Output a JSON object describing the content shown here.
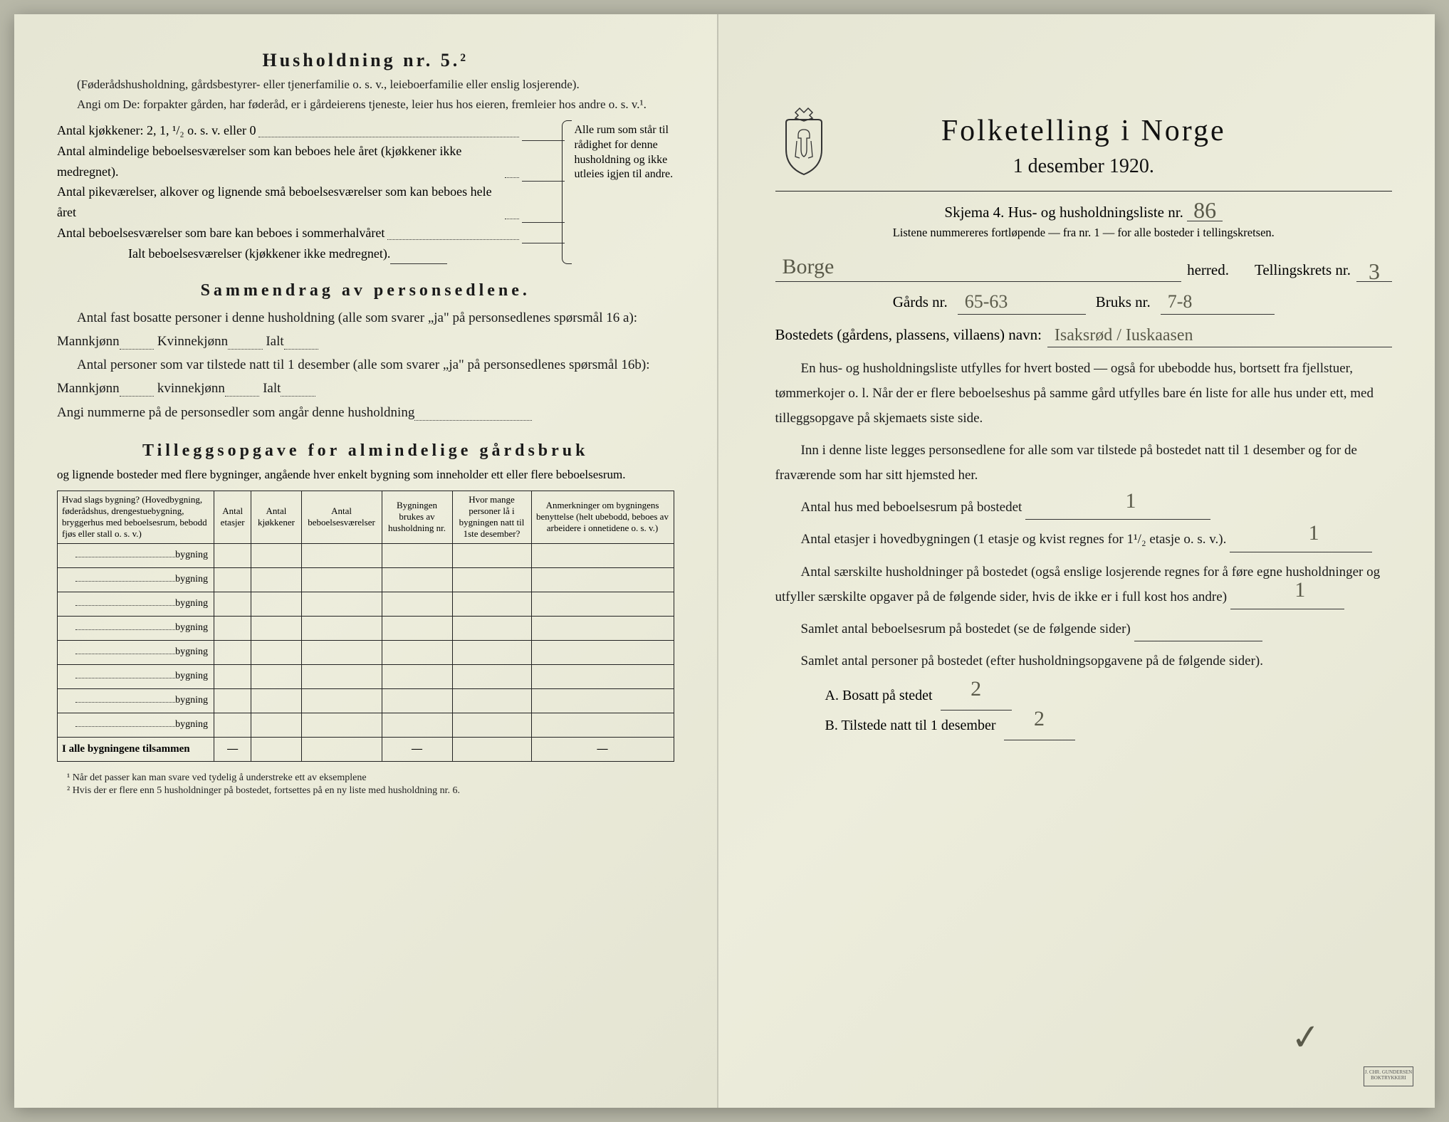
{
  "colors": {
    "paper": "#e8e8d8",
    "ink": "#1a1a1a",
    "handwriting": "#5a5a4a",
    "background": "#b8b8a8",
    "rule": "#222222"
  },
  "left": {
    "title": "Husholdning nr. 5.²",
    "intro1": "(Føderådshusholdning, gårdsbestyrer- eller tjenerfamilie o. s. v., leieboerfamilie eller enslig losjerende).",
    "intro2": "Angi om De: forpakter gården, har føderåd, er i gårdeierens tjeneste, leier hus hos eieren, fremleier hos andre o. s. v.¹.",
    "kitchens": "Antal kjøkkener: 2, 1, ¹/₂ o. s. v. eller 0",
    "rooms": [
      "Antal almindelige beboelsesværelser som kan beboes hele året (kjøkkener ikke medregnet).",
      "Antal pikeværelser, alkover og lignende små beboelsesværelser som kan beboes hele året",
      "Antal beboelsesværelser som bare kan beboes i sommerhalvåret"
    ],
    "rooms_total": "Ialt beboelsesværelser (kjøkkener ikke medregnet).",
    "margin_note": "Alle rum som står til rådighet for denne husholdning og ikke utleies igjen til andre.",
    "section2_title": "Sammendrag av personsedlene.",
    "s2_line1": "Antal fast bosatte personer i denne husholdning (alle som svarer „ja\" på personsedlenes spørsmål 16 a): Mannkjønn",
    "s2_kvinne": "Kvinnekjønn",
    "s2_ialt": "Ialt",
    "s2_line2": "Antal personer som var tilstede natt til 1 desember (alle som svarer „ja\" på personsedlenes spørsmål 16b): Mannkjønn",
    "s2_kvinne2": "kvinnekjønn",
    "s2_angi": "Angi nummerne på de personsedler som angår denne husholdning",
    "section3_title": "Tilleggsopgave for almindelige gårdsbruk",
    "s3_sub": "og lignende bosteder med flere bygninger, angående hver enkelt bygning som inneholder ett eller flere beboelsesrum.",
    "table": {
      "headers": [
        "Hvad slags bygning?\n(Hovedbygning, føderådshus, drengestuebygning, bryggerhus med beboelsesrum, bebodd fjøs eller stall o. s. v.)",
        "Antal etasjer",
        "Antal kjøkkener",
        "Antal beboelsesværelser",
        "Bygningen brukes av husholdning nr.",
        "Hvor mange personer lå i bygningen natt til 1ste desember?",
        "Anmerkninger om bygningens benyttelse (helt ubebodd, beboes av arbeidere i onnetidene o. s. v.)"
      ],
      "row_suffix": "bygning",
      "row_count": 8,
      "sum_label": "I alle bygningene tilsammen"
    },
    "footnotes": [
      "¹  Når det passer kan man svare ved tydelig å understreke ett av eksemplene",
      "²  Hvis der er flere enn 5 husholdninger på bostedet, fortsettes på en ny liste med husholdning nr. 6."
    ]
  },
  "right": {
    "title": "Folketelling i Norge",
    "date": "1 desember 1920.",
    "rule_above": true,
    "skjema": "Skjema 4.  Hus- og husholdningsliste nr.",
    "skjema_nr": "86",
    "listene": "Listene nummereres fortløpende — fra nr. 1 — for alle bosteder i tellingskretsen.",
    "herred_value": "Borge",
    "herred_label": "herred.",
    "tellingskrets_label": "Tellingskrets nr.",
    "tellingskrets_nr": "3",
    "gards_label": "Gårds nr.",
    "gards_nr": "65-63",
    "bruks_label": "Bruks nr.",
    "bruks_nr": "7-8",
    "bosted_label": "Bostedets (gårdens, plassens, villaens) navn:",
    "bosted_value": "Isaksrød / Iuskaasen",
    "para1": "En hus- og husholdningsliste utfylles for hvert bosted — også for ubebodde hus, bortsett fra fjellstuer, tømmerkojer o. l. Når der er flere beboelseshus på samme gård utfylles bare én liste for alle hus under ett, med tilleggsopgave på skjemaets siste side.",
    "para2": "Inn i denne liste legges personsedlene for alle som var tilstede på bostedet natt til 1 desember og for de fraværende som har sitt hjemsted her.",
    "q1": "Antal hus med beboelsesrum på bostedet",
    "q1_val": "1",
    "q2a": "Antal etasjer i hovedbygningen (1 etasje og kvist regnes for 1¹/₂ etasje o. s. v.).",
    "q2_val": "1",
    "q3": "Antal særskilte husholdninger på bostedet (også enslige losjerende regnes for å føre egne husholdninger og utfyller særskilte opgaver på de følgende sider, hvis de ikke er i full kost hos andre)",
    "q3_val": "1",
    "q4": "Samlet antal beboelsesrum på bostedet (se de følgende sider)",
    "q5": "Samlet antal personer på bostedet (efter husholdningsopgavene på de følgende sider).",
    "a_label": "A.  Bosatt på stedet",
    "a_val": "2",
    "b_label": "B.  Tilstede natt til 1 desember",
    "b_val": "2",
    "checkmark": "✓",
    "stamp": "J. CHR. GUNDERSEN BOKTRYKKERI"
  }
}
